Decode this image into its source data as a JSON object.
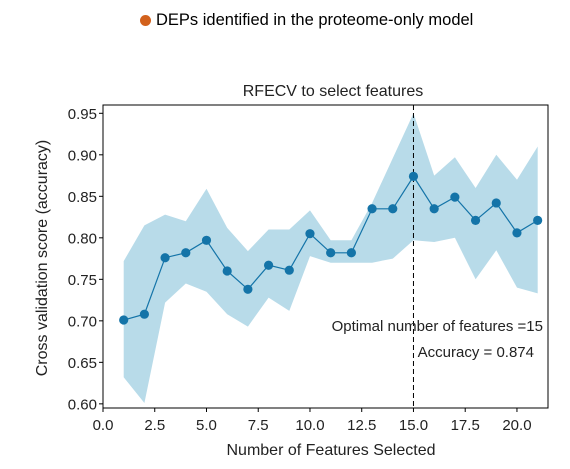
{
  "legend": {
    "marker_color": "#d2611c",
    "label": "DEPs identified in the proteome-only model"
  },
  "chart_data": {
    "type": "line",
    "title": "RFECV to  select features",
    "xlabel": "Number of Features Selected",
    "ylabel": "Cross validation score (accuracy)",
    "xlim": [
      0,
      21.5
    ],
    "ylim": [
      0.595,
      0.96
    ],
    "xticks": [
      0.0,
      2.5,
      5.0,
      7.5,
      10.0,
      12.5,
      15.0,
      17.5,
      20.0
    ],
    "xtick_labels": [
      "0.0",
      "2.5",
      "5.0",
      "7.5",
      "10.0",
      "12.5",
      "15.0",
      "17.5",
      "20.0"
    ],
    "yticks": [
      0.6,
      0.65,
      0.7,
      0.75,
      0.8,
      0.85,
      0.9,
      0.95
    ],
    "ytick_labels": [
      "0.60",
      "0.65",
      "0.70",
      "0.75",
      "0.80",
      "0.85",
      "0.90",
      "0.95"
    ],
    "series": [
      {
        "x": [
          1,
          2,
          3,
          4,
          5,
          6,
          7,
          8,
          9,
          10,
          11,
          12,
          13,
          14,
          15,
          16,
          17,
          18,
          19,
          20,
          21
        ],
        "mean": [
          0.701,
          0.708,
          0.776,
          0.782,
          0.797,
          0.76,
          0.738,
          0.767,
          0.761,
          0.805,
          0.782,
          0.782,
          0.835,
          0.835,
          0.874,
          0.835,
          0.849,
          0.821,
          0.842,
          0.806,
          0.821
        ],
        "lower": [
          0.632,
          0.601,
          0.722,
          0.745,
          0.735,
          0.708,
          0.693,
          0.728,
          0.712,
          0.778,
          0.77,
          0.77,
          0.77,
          0.775,
          0.797,
          0.795,
          0.8,
          0.75,
          0.785,
          0.74,
          0.733
        ],
        "upper": [
          0.772,
          0.815,
          0.828,
          0.82,
          0.859,
          0.812,
          0.784,
          0.81,
          0.81,
          0.833,
          0.797,
          0.797,
          0.842,
          0.896,
          0.95,
          0.875,
          0.897,
          0.86,
          0.9,
          0.87,
          0.91
        ]
      }
    ],
    "line_color": "#1474a8",
    "band_color": "#b8dbe9",
    "optimal_x": 15,
    "annotations": [
      "Optimal number of features =15",
      "Accuracy = 0.874"
    ]
  }
}
